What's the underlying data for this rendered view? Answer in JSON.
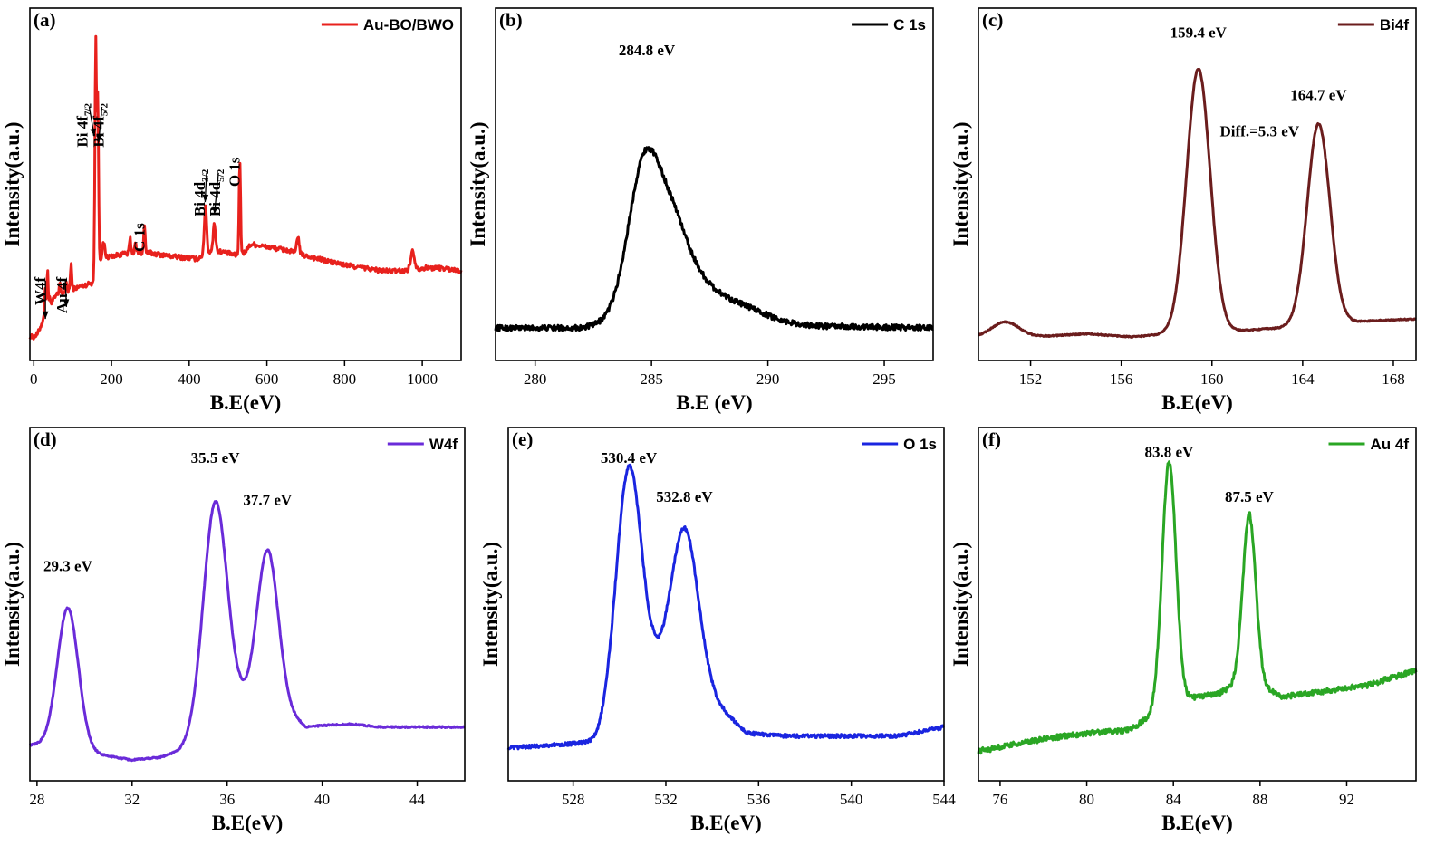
{
  "chart_data": [
    {
      "id": "a",
      "type": "line",
      "panel_label": "(a)",
      "xlabel": "B.E(eV)",
      "ylabel": "Intensity(a.u.)",
      "xlim": [
        -10,
        1100
      ],
      "ylim": [
        0,
        100
      ],
      "xticks": [
        0,
        200,
        400,
        600,
        800,
        1000
      ],
      "legend": {
        "name": "Au-BO/BWO",
        "color": "#e8211d",
        "position": "top-right"
      },
      "series": [
        {
          "name": "Au-BO/BWO",
          "color": "#e8211d",
          "noise": 0.8,
          "baseline": [
            [
              0,
              2
            ],
            [
              10,
              3
            ],
            [
              25,
              8
            ],
            [
              35,
              12
            ],
            [
              60,
              16
            ],
            [
              100,
              18
            ],
            [
              150,
              20
            ],
            [
              157,
              22
            ],
            [
              170,
              28
            ],
            [
              200,
              29
            ],
            [
              250,
              30
            ],
            [
              300,
              30
            ],
            [
              350,
              29
            ],
            [
              420,
              28
            ],
            [
              445,
              30
            ],
            [
              460,
              31
            ],
            [
              500,
              30
            ],
            [
              525,
              29
            ],
            [
              540,
              30
            ],
            [
              560,
              33
            ],
            [
              600,
              32
            ],
            [
              650,
              31
            ],
            [
              700,
              29
            ],
            [
              800,
              26
            ],
            [
              900,
              24
            ],
            [
              950,
              24
            ],
            [
              1000,
              25
            ],
            [
              1050,
              25
            ],
            [
              1100,
              24
            ]
          ],
          "peaks": [
            {
              "x": 29.3,
              "h": 9,
              "w": 1.5
            },
            {
              "x": 35.5,
              "h": 13,
              "w": 1.5
            },
            {
              "x": 41,
              "h": 2,
              "w": 1.5
            },
            {
              "x": 67,
              "h": 4,
              "w": 1.5
            },
            {
              "x": 84,
              "h": 3,
              "w": 1.5
            },
            {
              "x": 96,
              "h": 8,
              "w": 2
            },
            {
              "x": 159.4,
              "h": 77,
              "w": 2
            },
            {
              "x": 164.7,
              "h": 55,
              "w": 2
            },
            {
              "x": 180,
              "h": 5,
              "w": 3
            },
            {
              "x": 248,
              "h": 5,
              "w": 2
            },
            {
              "x": 262,
              "h": 3,
              "w": 2
            },
            {
              "x": 284.8,
              "h": 9,
              "w": 2
            },
            {
              "x": 442,
              "h": 16,
              "w": 3
            },
            {
              "x": 465,
              "h": 9,
              "w": 3
            },
            {
              "x": 530.4,
              "h": 31,
              "w": 2
            },
            {
              "x": 680,
              "h": 6,
              "w": 3
            },
            {
              "x": 975,
              "h": 6,
              "w": 5
            }
          ]
        }
      ],
      "annotations": [
        {
          "text": "W4f",
          "sub": "",
          "tail": "",
          "x": 30,
          "y": 22,
          "tx": 30,
          "ty": 8,
          "vertical": true
        },
        {
          "text": "Au 4f",
          "sub": "",
          "tail": "",
          "x": 86,
          "y": 22,
          "tx": 84,
          "ty": 12,
          "vertical": true
        },
        {
          "text": "Bi 4f",
          "sub": "7/2",
          "tail": "",
          "x": 138,
          "y": 80,
          "tx": 156,
          "ty": 69,
          "vertical": true
        },
        {
          "text": "Bi 4f",
          "sub": "5/2",
          "tail": "",
          "x": 180,
          "y": 80,
          "tx": 167,
          "ty": 67,
          "vertical": true
        },
        {
          "text": "Bi 4d",
          "sub": "3/2",
          "tail": "",
          "x": 440,
          "y": 58,
          "tx": 441,
          "ty": 47,
          "vertical": true
        },
        {
          "text": "Bi 4d",
          "sub": "5/2",
          "tail": "",
          "x": 480,
          "y": 58,
          "tx": 465,
          "ty": 43,
          "vertical": true
        },
        {
          "text": "C 1s",
          "sub": "",
          "tail": "",
          "x": 284.8,
          "y": 40,
          "tx": null,
          "ty": null,
          "vertical": true
        },
        {
          "text": "O 1s",
          "sub": "",
          "tail": "",
          "x": 530.4,
          "y": 62,
          "tx": null,
          "ty": null,
          "vertical": true
        }
      ]
    },
    {
      "id": "b",
      "type": "line",
      "panel_label": "(b)",
      "xlabel": "B.E (eV)",
      "ylabel": "Intensity(a.u.)",
      "xlim": [
        278.3,
        297.1
      ],
      "ylim": [
        0,
        100
      ],
      "xticks": [
        280,
        285,
        290,
        295
      ],
      "legend": {
        "name": "C 1s",
        "color": "#000000",
        "position": "top-right"
      },
      "series": [
        {
          "name": "C 1s",
          "color": "#000000",
          "noise": 0.9,
          "baseline": [
            [
              278.3,
              5
            ],
            [
              282,
              5
            ],
            [
              283,
              6
            ],
            [
              288,
              6
            ],
            [
              297.1,
              5
            ]
          ],
          "peaks": [
            {
              "x": 284.8,
              "h": 58,
              "w": 0.75,
              "wr": 1.15
            },
            {
              "x": 286.3,
              "h": 20,
              "w": 0.6,
              "wr": 1.6
            },
            {
              "x": 288.4,
              "h": 7,
              "w": 0.9,
              "wr": 1.5
            }
          ]
        }
      ],
      "annotations": [
        {
          "text": "284.8 eV",
          "x": 284.8,
          "y": 96
        }
      ]
    },
    {
      "id": "c",
      "type": "line",
      "panel_label": "(c)",
      "xlabel": "B.E(eV)",
      "ylabel": "Intensity(a.u.)",
      "xlim": [
        149.7,
        169
      ],
      "ylim": [
        0,
        100
      ],
      "xticks": [
        152,
        156,
        160,
        164,
        168
      ],
      "legend": {
        "name": "Bi4f",
        "color": "#6b1d1d",
        "position": "top-right"
      },
      "series": [
        {
          "name": "Bi4f",
          "color": "#6b1d1d",
          "noise": 0.2,
          "baseline": [
            [
              149.7,
              2
            ],
            [
              152,
              2
            ],
            [
              154.5,
              3
            ],
            [
              156.5,
              2
            ],
            [
              158,
              3
            ],
            [
              161,
              4
            ],
            [
              163,
              5
            ],
            [
              166,
              7
            ],
            [
              169,
              8
            ]
          ],
          "peaks": [
            {
              "x": 150.9,
              "h": 5,
              "w": 0.6
            },
            {
              "x": 159.4,
              "h": 88,
              "w": 0.52
            },
            {
              "x": 164.7,
              "h": 67,
              "w": 0.5
            }
          ]
        }
      ],
      "annotations": [
        {
          "text": "159.4 eV",
          "x": 159.4,
          "y": 102
        },
        {
          "text": "164.7 eV",
          "x": 164.7,
          "y": 81
        },
        {
          "text": "Diff.=5.3 eV",
          "x": 162.1,
          "y": 69
        }
      ]
    },
    {
      "id": "d",
      "type": "line",
      "panel_label": "(d)",
      "xlabel": "B.E(eV)",
      "ylabel": "Intensity(a.u.)",
      "xlim": [
        27.7,
        46
      ],
      "ylim": [
        0,
        100
      ],
      "xticks": [
        28,
        32,
        36,
        40,
        44
      ],
      "legend": {
        "name": "W4f",
        "color": "#6a2bd9",
        "position": "top-right"
      },
      "series": [
        {
          "name": "W4f",
          "color": "#6a2bd9",
          "noise": 0.25,
          "baseline": [
            [
              27.7,
              6
            ],
            [
              28.3,
              6
            ],
            [
              30.5,
              3
            ],
            [
              32,
              1
            ],
            [
              33.2,
              2
            ],
            [
              34,
              4
            ],
            [
              36.5,
              19
            ],
            [
              37.8,
              20
            ],
            [
              39,
              14
            ],
            [
              39.3,
              12
            ],
            [
              40,
              12.5
            ],
            [
              41.2,
              13
            ],
            [
              42.5,
              12
            ],
            [
              46,
              12
            ]
          ],
          "peaks": [
            {
              "x": 29.3,
              "h": 47,
              "w": 0.44
            },
            {
              "x": 35.5,
              "h": 74,
              "w": 0.5
            },
            {
              "x": 37.7,
              "h": 51,
              "w": 0.45
            }
          ]
        }
      ],
      "annotations": [
        {
          "text": "29.3 eV",
          "x": 29.3,
          "y": 64
        },
        {
          "text": "35.5 eV",
          "x": 35.5,
          "y": 100
        },
        {
          "text": "37.7 eV",
          "x": 37.7,
          "y": 86
        }
      ]
    },
    {
      "id": "e",
      "type": "line",
      "panel_label": "(e)",
      "xlabel": "B.E(eV)",
      "ylabel": "Intensity(a.u.)",
      "xlim": [
        525.2,
        544
      ],
      "ylim": [
        0,
        100
      ],
      "xticks": [
        528,
        532,
        536,
        540,
        544
      ],
      "legend": {
        "name": "O 1s",
        "color": "#1a25e0",
        "position": "top-right"
      },
      "series": [
        {
          "name": "O 1s",
          "color": "#1a25e0",
          "noise": 0.6,
          "baseline": [
            [
              525.2,
              5
            ],
            [
              527,
              6
            ],
            [
              529,
              7
            ],
            [
              531.5,
              28
            ],
            [
              533,
              26
            ],
            [
              534.5,
              17
            ],
            [
              535.5,
              10
            ],
            [
              537,
              9
            ],
            [
              542,
              9
            ],
            [
              544,
              12
            ]
          ],
          "peaks": [
            {
              "x": 530.4,
              "h": 80,
              "w": 0.55
            },
            {
              "x": 532.8,
              "h": 52,
              "w": 0.6
            }
          ]
        }
      ],
      "annotations": [
        {
          "text": "530.4 eV",
          "x": 530.4,
          "y": 100
        },
        {
          "text": "532.8 eV",
          "x": 532.8,
          "y": 87
        }
      ]
    },
    {
      "id": "f",
      "type": "line",
      "panel_label": "(f)",
      "xlabel": "B.E(eV)",
      "ylabel": "Intensity(a.u.)",
      "xlim": [
        75,
        95.2
      ],
      "ylim": [
        0,
        100
      ],
      "xticks": [
        76,
        80,
        84,
        88,
        92
      ],
      "legend": {
        "name": "Au 4f",
        "color": "#2aa624",
        "position": "top-right"
      },
      "series": [
        {
          "name": "Au 4f",
          "color": "#2aa624",
          "noise": 0.9,
          "baseline": [
            [
              75,
              4
            ],
            [
              78,
              8
            ],
            [
              80,
              10
            ],
            [
              82,
              11
            ],
            [
              83,
              16
            ],
            [
              85,
              22
            ],
            [
              86,
              23
            ],
            [
              87.5,
              28
            ],
            [
              89,
              22
            ],
            [
              91,
              24
            ],
            [
              93,
              26
            ],
            [
              95.2,
              31
            ]
          ],
          "peaks": [
            {
              "x": 83.8,
              "h": 82,
              "w": 0.32
            },
            {
              "x": 87.5,
              "h": 55,
              "w": 0.3
            }
          ]
        }
      ],
      "annotations": [
        {
          "text": "83.8 eV",
          "x": 83.8,
          "y": 102
        },
        {
          "text": "87.5 eV",
          "x": 87.5,
          "y": 87
        }
      ]
    }
  ]
}
